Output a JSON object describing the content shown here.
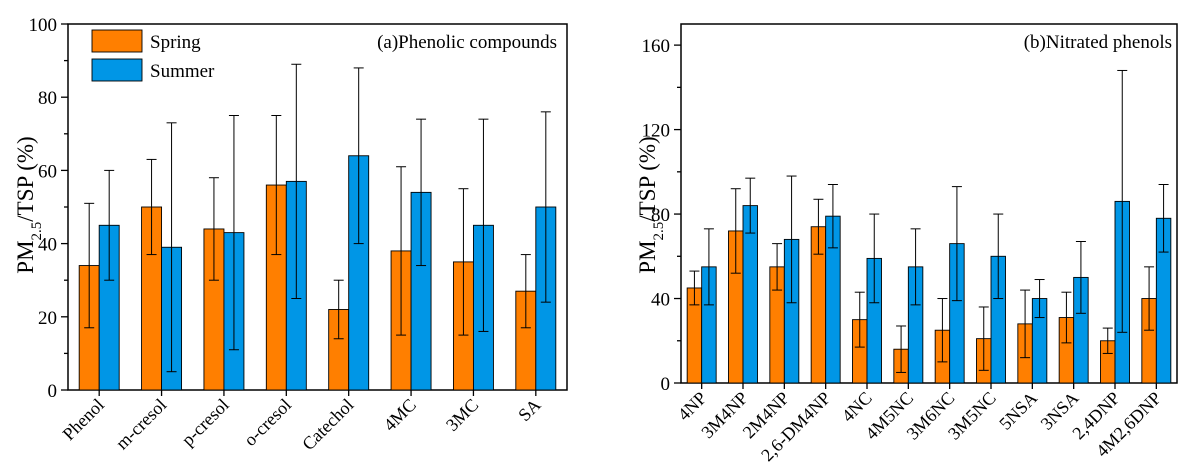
{
  "colors": {
    "spring": "#FF7F00",
    "summer": "#0096E6",
    "axis": "#000000"
  },
  "chart_data": [
    {
      "type": "bar",
      "annotation": "(a)Phenolic compounds",
      "ylabel_main": "PM",
      "ylabel_sub": "2.5",
      "ylabel_rest": "/TSP (%)",
      "ylim": [
        0,
        100
      ],
      "yticks": [
        0,
        20,
        40,
        60,
        80,
        100
      ],
      "legend": {
        "position": "top-left",
        "entries": [
          "Spring",
          "Summer"
        ]
      },
      "categories": [
        "Phenol",
        "m-cresol",
        "p-cresol",
        "o-cresol",
        "Catechol",
        "4MC",
        "3MC",
        "SA"
      ],
      "series": [
        {
          "name": "Spring",
          "values": [
            34,
            50,
            44,
            56,
            22,
            38,
            35,
            27
          ],
          "err": [
            17,
            13,
            14,
            19,
            8,
            23,
            20,
            10
          ]
        },
        {
          "name": "Summer",
          "values": [
            45,
            39,
            43,
            57,
            64,
            54,
            45,
            50
          ],
          "err": [
            15,
            34,
            32,
            32,
            24,
            20,
            29,
            26
          ]
        }
      ]
    },
    {
      "type": "bar",
      "annotation": "(b)Nitrated phenols",
      "ylabel_main": "PM",
      "ylabel_sub": "2.5",
      "ylabel_rest": "/TSP (%)",
      "ylim": [
        0,
        170
      ],
      "yticks": [
        0,
        40,
        80,
        120,
        160
      ],
      "categories": [
        "4NP",
        "3M4NP",
        "2M4NP",
        "2,6-DM4NP",
        "4NC",
        "4M5NC",
        "3M6NC",
        "3M5NC",
        "5NSA",
        "3NSA",
        "2,4DNP",
        "4M2,6DNP"
      ],
      "series": [
        {
          "name": "Spring",
          "values": [
            45,
            72,
            55,
            74,
            30,
            16,
            25,
            21,
            28,
            31,
            20,
            40
          ],
          "err": [
            8,
            20,
            11,
            13,
            13,
            11,
            15,
            15,
            16,
            12,
            6,
            15
          ]
        },
        {
          "name": "Summer",
          "values": [
            55,
            84,
            68,
            79,
            59,
            55,
            66,
            60,
            40,
            50,
            86,
            78
          ],
          "err": [
            18,
            13,
            30,
            15,
            21,
            18,
            27,
            20,
            9,
            17,
            62,
            16
          ]
        }
      ]
    }
  ]
}
